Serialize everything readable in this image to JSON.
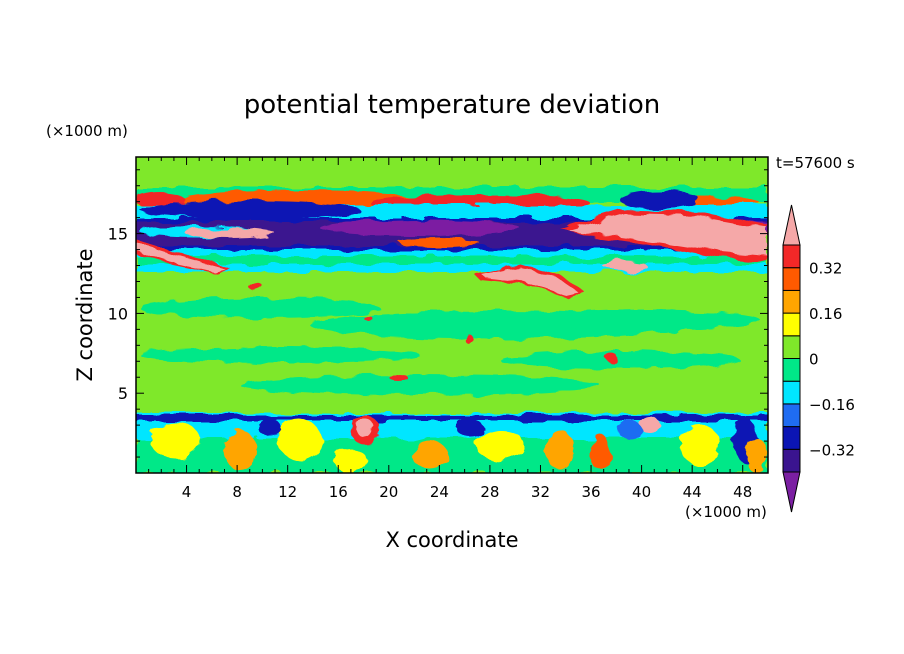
{
  "chart_data": {
    "type": "heatmap",
    "title": "potential temperature deviation",
    "xlabel": "X coordinate",
    "ylabel": "Z coordinate",
    "x_unit": "(×1000 m)",
    "y_unit": "(×1000 m)",
    "time_label": "t=57600 s",
    "xlim": [
      0,
      50
    ],
    "ylim": [
      0,
      19.8
    ],
    "x_ticks": [
      4,
      8,
      12,
      16,
      20,
      24,
      28,
      32,
      36,
      40,
      44,
      48
    ],
    "y_ticks": [
      5,
      10,
      15
    ],
    "colorbar": {
      "levels": [
        -0.4,
        -0.32,
        -0.24,
        -0.16,
        -0.08,
        0,
        0.08,
        0.16,
        0.24,
        0.32,
        0.4
      ],
      "tick_labels": [
        "0.32",
        "0.16",
        "0",
        "−0.16",
        "−0.32"
      ],
      "tick_values": [
        0.32,
        0.16,
        0,
        -0.16,
        -0.32
      ],
      "colors": [
        "#7b1fa2",
        "#3a148f",
        "#0b15b4",
        "#1f6cf2",
        "#00e6ff",
        "#00e888",
        "#7fe82a",
        "#ffff00",
        "#ffa500",
        "#ff5a00",
        "#f32828",
        "#f5a8a8"
      ],
      "extend": "both"
    }
  }
}
